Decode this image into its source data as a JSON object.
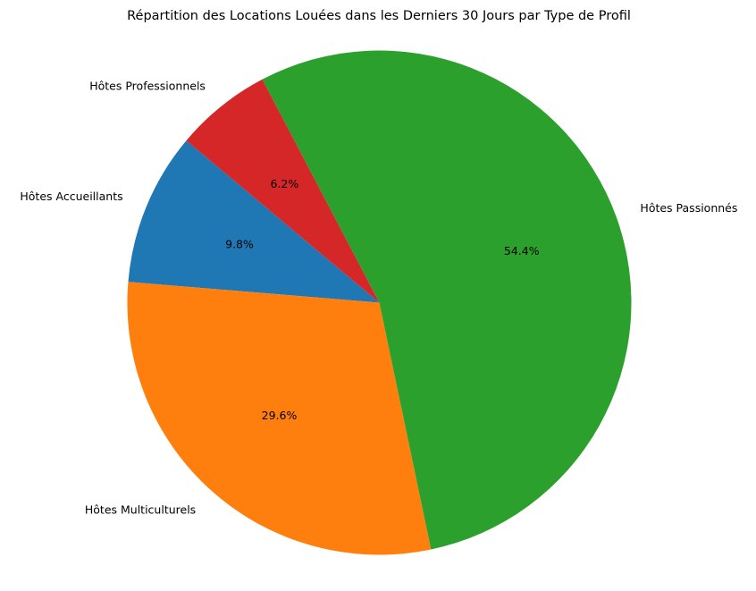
{
  "chart_data": {
    "type": "pie",
    "title": "Répartition des Locations Louées dans les Derniers 30 Jours par Type de Profil",
    "slices": [
      {
        "label": "Hôtes Accueillants",
        "value": 9.8,
        "percent_label": "9.8%",
        "color": "#1f77b4"
      },
      {
        "label": "Hôtes Multiculturels",
        "value": 29.6,
        "percent_label": "29.6%",
        "color": "#ff7f0e"
      },
      {
        "label": "Hôtes Passionnés",
        "value": 54.4,
        "percent_label": "54.4%",
        "color": "#2ca02c"
      },
      {
        "label": "Hôtes Professionnels",
        "value": 6.2,
        "percent_label": "6.2%",
        "color": "#d62728"
      }
    ],
    "start_angle_deg": 140,
    "direction": "counterclockwise",
    "legend": "none"
  }
}
